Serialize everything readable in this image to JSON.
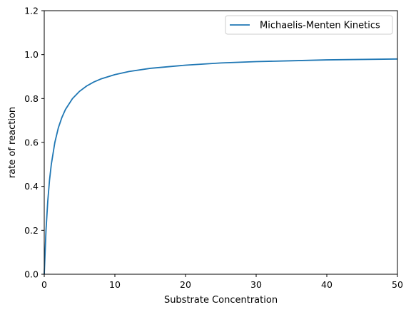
{
  "chart_data": {
    "type": "line",
    "title": "",
    "xlabel": "Substrate Concentration",
    "ylabel": "rate of reaction",
    "xlim": [
      0,
      50
    ],
    "ylim": [
      0,
      1.2
    ],
    "x_ticks": [
      0,
      10,
      20,
      30,
      40,
      50
    ],
    "y_ticks": [
      0.0,
      0.2,
      0.4,
      0.6,
      0.8,
      1.0,
      1.2
    ],
    "x_tick_labels": [
      "0",
      "10",
      "20",
      "30",
      "40",
      "50"
    ],
    "y_tick_labels": [
      "0.0",
      "0.2",
      "0.4",
      "0.6",
      "0.8",
      "1.0",
      "1.2"
    ],
    "grid": false,
    "legend_position": "top-right",
    "series": [
      {
        "name": "Michaelis-Menten Kinetics",
        "color": "#1f77b4",
        "x": [
          0,
          0.25,
          0.5,
          0.75,
          1,
          1.5,
          2,
          2.5,
          3,
          4,
          5,
          6,
          7,
          8,
          10,
          12,
          15,
          20,
          25,
          30,
          35,
          40,
          45,
          50
        ],
        "y": [
          0,
          0.2,
          0.333,
          0.429,
          0.5,
          0.6,
          0.667,
          0.714,
          0.75,
          0.8,
          0.833,
          0.857,
          0.875,
          0.889,
          0.909,
          0.923,
          0.9375,
          0.952,
          0.962,
          0.968,
          0.972,
          0.976,
          0.978,
          0.98
        ]
      }
    ]
  }
}
